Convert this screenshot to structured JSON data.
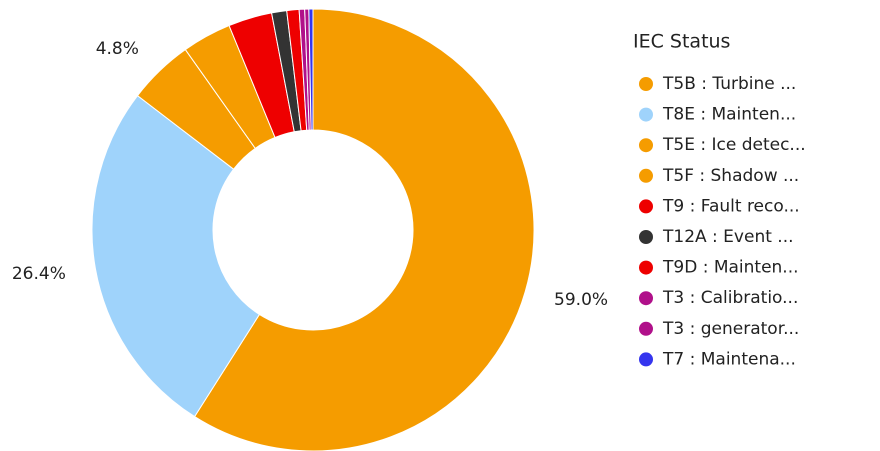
{
  "chart_data": {
    "type": "donut",
    "legend_title": "IEC Status",
    "categories": [
      "T5B : Turbine ...",
      "T8E : Mainten...",
      "T5E : Ice detec...",
      "T5F : Shadow ...",
      "T9 : Fault reco...",
      "T12A : Event ...",
      "T9D : Mainten...",
      "T3 : Calibratio...",
      "T3 : generator...",
      "T7 : Maintena..."
    ],
    "values": [
      59.0,
      26.4,
      4.8,
      3.6,
      3.2,
      1.1,
      0.9,
      0.4,
      0.3,
      0.3
    ],
    "value_labels": [
      "59.0%",
      "26.4%",
      "4.8%",
      null,
      null,
      null,
      null,
      null,
      null,
      null
    ],
    "colors": [
      "#f59c00",
      "#9fd3fb",
      "#f59c00",
      "#f59c00",
      "#ee0000",
      "#333333",
      "#ee0000",
      "#b0108a",
      "#b0108a",
      "#3535ee"
    ],
    "legend": "right"
  }
}
